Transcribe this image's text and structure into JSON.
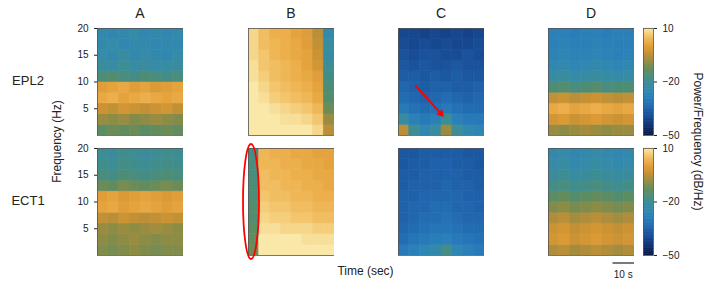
{
  "chart_data": {
    "type": "heatmap",
    "rows": [
      "EPL2",
      "ECT1"
    ],
    "columns": [
      "A",
      "B",
      "C",
      "D"
    ],
    "xlabel": "Time (sec)",
    "ylabel": "Frequency (Hz)",
    "colorbar_label": "Power/Frequency (dB/Hz)",
    "xlim": [
      0,
      40
    ],
    "ylim": [
      0,
      20
    ],
    "yticks": [
      5,
      10,
      15,
      20
    ],
    "tick_labels": "y",
    "x": [
      0,
      5,
      10,
      15,
      20,
      25,
      30,
      35
    ],
    "y": [
      0,
      2,
      4,
      6,
      8,
      10,
      12,
      14,
      16,
      18
    ],
    "color_range": [
      -50,
      10
    ],
    "color_ticks": [
      10,
      -20,
      -50
    ],
    "scale_bar": {
      "value": 10,
      "label": "10 s"
    },
    "annotations": [
      {
        "type": "arrow",
        "row": "EPL2",
        "column": "C",
        "color": "red"
      },
      {
        "type": "ellipse",
        "row": "ECT1",
        "column": "B",
        "color": "red"
      }
    ],
    "panels": [
      {
        "row": "EPL2",
        "column": "A",
        "cells": [
          [
            -14,
            -12,
            -13,
            -12,
            -14,
            -13,
            -12,
            -13
          ],
          [
            -8,
            -9,
            -8,
            -10,
            -9,
            -8,
            -9,
            -10
          ],
          [
            -3,
            -4,
            -2,
            -3,
            -4,
            -3,
            -2,
            -4
          ],
          [
            2,
            3,
            1,
            2,
            3,
            2,
            1,
            2
          ],
          [
            0,
            1,
            2,
            0,
            1,
            -1,
            0,
            1
          ],
          [
            -16,
            -15,
            -17,
            -18,
            -16,
            -17,
            -18,
            -17
          ],
          [
            -21,
            -22,
            -20,
            -22,
            -21,
            -23,
            -22,
            -21
          ],
          [
            -23,
            -24,
            -22,
            -24,
            -23,
            -24,
            -25,
            -23
          ],
          [
            -24,
            -23,
            -25,
            -24,
            -24,
            -25,
            -24,
            -25
          ],
          [
            -24,
            -25,
            -24,
            -23,
            -25,
            -24,
            -25,
            -24
          ]
        ]
      },
      {
        "row": "EPL2",
        "column": "B",
        "cells": [
          [
            10,
            10,
            10,
            10,
            10,
            10,
            8,
            -5
          ],
          [
            10,
            10,
            10,
            9,
            9,
            8,
            6,
            -8
          ],
          [
            10,
            10,
            9,
            8,
            7,
            6,
            4,
            -12
          ],
          [
            10,
            9,
            7,
            6,
            5,
            4,
            2,
            -15
          ],
          [
            10,
            8,
            6,
            5,
            4,
            3,
            1,
            -16
          ],
          [
            9,
            7,
            5,
            4,
            3,
            2,
            0,
            -18
          ],
          [
            9,
            6,
            5,
            4,
            3,
            1,
            -2,
            -20
          ],
          [
            8,
            6,
            4,
            3,
            2,
            1,
            -3,
            -22
          ],
          [
            8,
            5,
            4,
            3,
            2,
            0,
            -4,
            -22
          ],
          [
            8,
            5,
            3,
            3,
            1,
            0,
            -5,
            -24
          ]
        ]
      },
      {
        "row": "EPL2",
        "column": "C",
        "cells": [
          [
            -5,
            -20,
            -25,
            -22,
            -8,
            -20,
            -24,
            -26
          ],
          [
            -22,
            -28,
            -30,
            -28,
            -20,
            -28,
            -30,
            -30
          ],
          [
            -30,
            -32,
            -33,
            -32,
            -30,
            -32,
            -33,
            -33
          ],
          [
            -33,
            -34,
            -35,
            -34,
            -33,
            -34,
            -35,
            -34
          ],
          [
            -34,
            -35,
            -36,
            -35,
            -35,
            -36,
            -36,
            -35
          ],
          [
            -36,
            -36,
            -37,
            -36,
            -37,
            -36,
            -37,
            -37
          ],
          [
            -37,
            -38,
            -37,
            -38,
            -38,
            -37,
            -38,
            -38
          ],
          [
            -38,
            -39,
            -38,
            -38,
            -39,
            -39,
            -38,
            -39
          ],
          [
            -39,
            -40,
            -39,
            -40,
            -39,
            -40,
            -40,
            -39
          ],
          [
            -40,
            -40,
            -41,
            -40,
            -41,
            -40,
            -41,
            -40
          ]
        ]
      },
      {
        "row": "EPL2",
        "column": "D",
        "cells": [
          [
            -8,
            -9,
            -8,
            -7,
            -8,
            -9,
            -8,
            -8
          ],
          [
            -2,
            -1,
            -3,
            -2,
            -1,
            -2,
            -3,
            -2
          ],
          [
            2,
            3,
            1,
            2,
            3,
            2,
            1,
            2
          ],
          [
            -4,
            -3,
            -5,
            -4,
            -3,
            -4,
            -5,
            -4
          ],
          [
            -16,
            -15,
            -17,
            -16,
            -15,
            -17,
            -16,
            -16
          ],
          [
            -22,
            -21,
            -23,
            -22,
            -21,
            -22,
            -23,
            -22
          ],
          [
            -25,
            -24,
            -26,
            -25,
            -24,
            -25,
            -26,
            -25
          ],
          [
            -27,
            -26,
            -27,
            -27,
            -26,
            -27,
            -28,
            -27
          ],
          [
            -28,
            -27,
            -28,
            -28,
            -27,
            -28,
            -28,
            -28
          ],
          [
            -28,
            -28,
            -29,
            -28,
            -28,
            -29,
            -28,
            -28
          ]
        ]
      },
      {
        "row": "ECT1",
        "column": "A",
        "cells": [
          [
            -10,
            -11,
            -10,
            -9,
            -10,
            -11,
            -10,
            -10
          ],
          [
            -9,
            -10,
            -9,
            -8,
            -9,
            -10,
            -9,
            -9
          ],
          [
            -8,
            -9,
            -8,
            -9,
            -8,
            -7,
            -8,
            -9
          ],
          [
            -4,
            -5,
            -3,
            -4,
            -5,
            -4,
            -3,
            -4
          ],
          [
            1,
            2,
            0,
            1,
            2,
            1,
            0,
            1
          ],
          [
            0,
            1,
            -1,
            0,
            1,
            0,
            -1,
            0
          ],
          [
            -12,
            -13,
            -11,
            -12,
            -13,
            -12,
            -11,
            -12
          ],
          [
            -17,
            -18,
            -16,
            -17,
            -18,
            -17,
            -16,
            -17
          ],
          [
            -19,
            -20,
            -18,
            -19,
            -20,
            -19,
            -18,
            -19
          ],
          [
            -20,
            -21,
            -19,
            -20,
            -21,
            -20,
            -19,
            -20
          ]
        ]
      },
      {
        "row": "ECT1",
        "column": "B",
        "cells": [
          [
            -12,
            10,
            10,
            10,
            10,
            10,
            10,
            10
          ],
          [
            -13,
            10,
            10,
            10,
            10,
            9,
            9,
            9
          ],
          [
            -14,
            9,
            9,
            8,
            8,
            8,
            7,
            7
          ],
          [
            -15,
            8,
            7,
            7,
            6,
            6,
            5,
            5
          ],
          [
            -15,
            7,
            6,
            6,
            5,
            5,
            4,
            4
          ],
          [
            -16,
            6,
            5,
            5,
            4,
            4,
            3,
            3
          ],
          [
            -16,
            5,
            5,
            4,
            4,
            3,
            3,
            2
          ],
          [
            -17,
            5,
            4,
            4,
            3,
            3,
            2,
            2
          ],
          [
            -17,
            4,
            4,
            3,
            3,
            2,
            2,
            1
          ],
          [
            -18,
            4,
            3,
            3,
            2,
            2,
            1,
            1
          ]
        ]
      },
      {
        "row": "ECT1",
        "column": "C",
        "cells": [
          [
            -30,
            -28,
            -26,
            -24,
            -18,
            -26,
            -28,
            -30
          ],
          [
            -33,
            -31,
            -30,
            -29,
            -28,
            -30,
            -31,
            -32
          ],
          [
            -34,
            -33,
            -32,
            -31,
            -31,
            -32,
            -33,
            -33
          ],
          [
            -35,
            -34,
            -33,
            -33,
            -32,
            -33,
            -34,
            -34
          ],
          [
            -35,
            -34,
            -34,
            -33,
            -33,
            -34,
            -34,
            -35
          ],
          [
            -35,
            -35,
            -34,
            -34,
            -34,
            -34,
            -35,
            -35
          ],
          [
            -36,
            -35,
            -35,
            -35,
            -34,
            -35,
            -35,
            -36
          ],
          [
            -36,
            -36,
            -35,
            -35,
            -35,
            -35,
            -36,
            -36
          ],
          [
            -37,
            -36,
            -36,
            -35,
            -35,
            -36,
            -36,
            -37
          ],
          [
            -37,
            -37,
            -36,
            -36,
            -36,
            -36,
            -37,
            -37
          ]
        ]
      },
      {
        "row": "ECT1",
        "column": "D",
        "cells": [
          [
            -6,
            -5,
            -7,
            -6,
            -5,
            -6,
            -7,
            -6
          ],
          [
            -2,
            -1,
            -3,
            -2,
            -1,
            -2,
            -3,
            -2
          ],
          [
            -3,
            -2,
            -4,
            -3,
            -2,
            -3,
            -4,
            -3
          ],
          [
            -6,
            -5,
            -7,
            -6,
            -5,
            -6,
            -7,
            -6
          ],
          [
            -10,
            -9,
            -11,
            -10,
            -9,
            -10,
            -11,
            -10
          ],
          [
            -14,
            -13,
            -15,
            -14,
            -13,
            -14,
            -15,
            -14
          ],
          [
            -18,
            -17,
            -19,
            -18,
            -17,
            -18,
            -19,
            -18
          ],
          [
            -21,
            -20,
            -22,
            -21,
            -20,
            -21,
            -22,
            -21
          ],
          [
            -23,
            -22,
            -24,
            -23,
            -22,
            -23,
            -24,
            -23
          ],
          [
            -24,
            -23,
            -25,
            -24,
            -23,
            -24,
            -25,
            -24
          ]
        ]
      }
    ]
  }
}
